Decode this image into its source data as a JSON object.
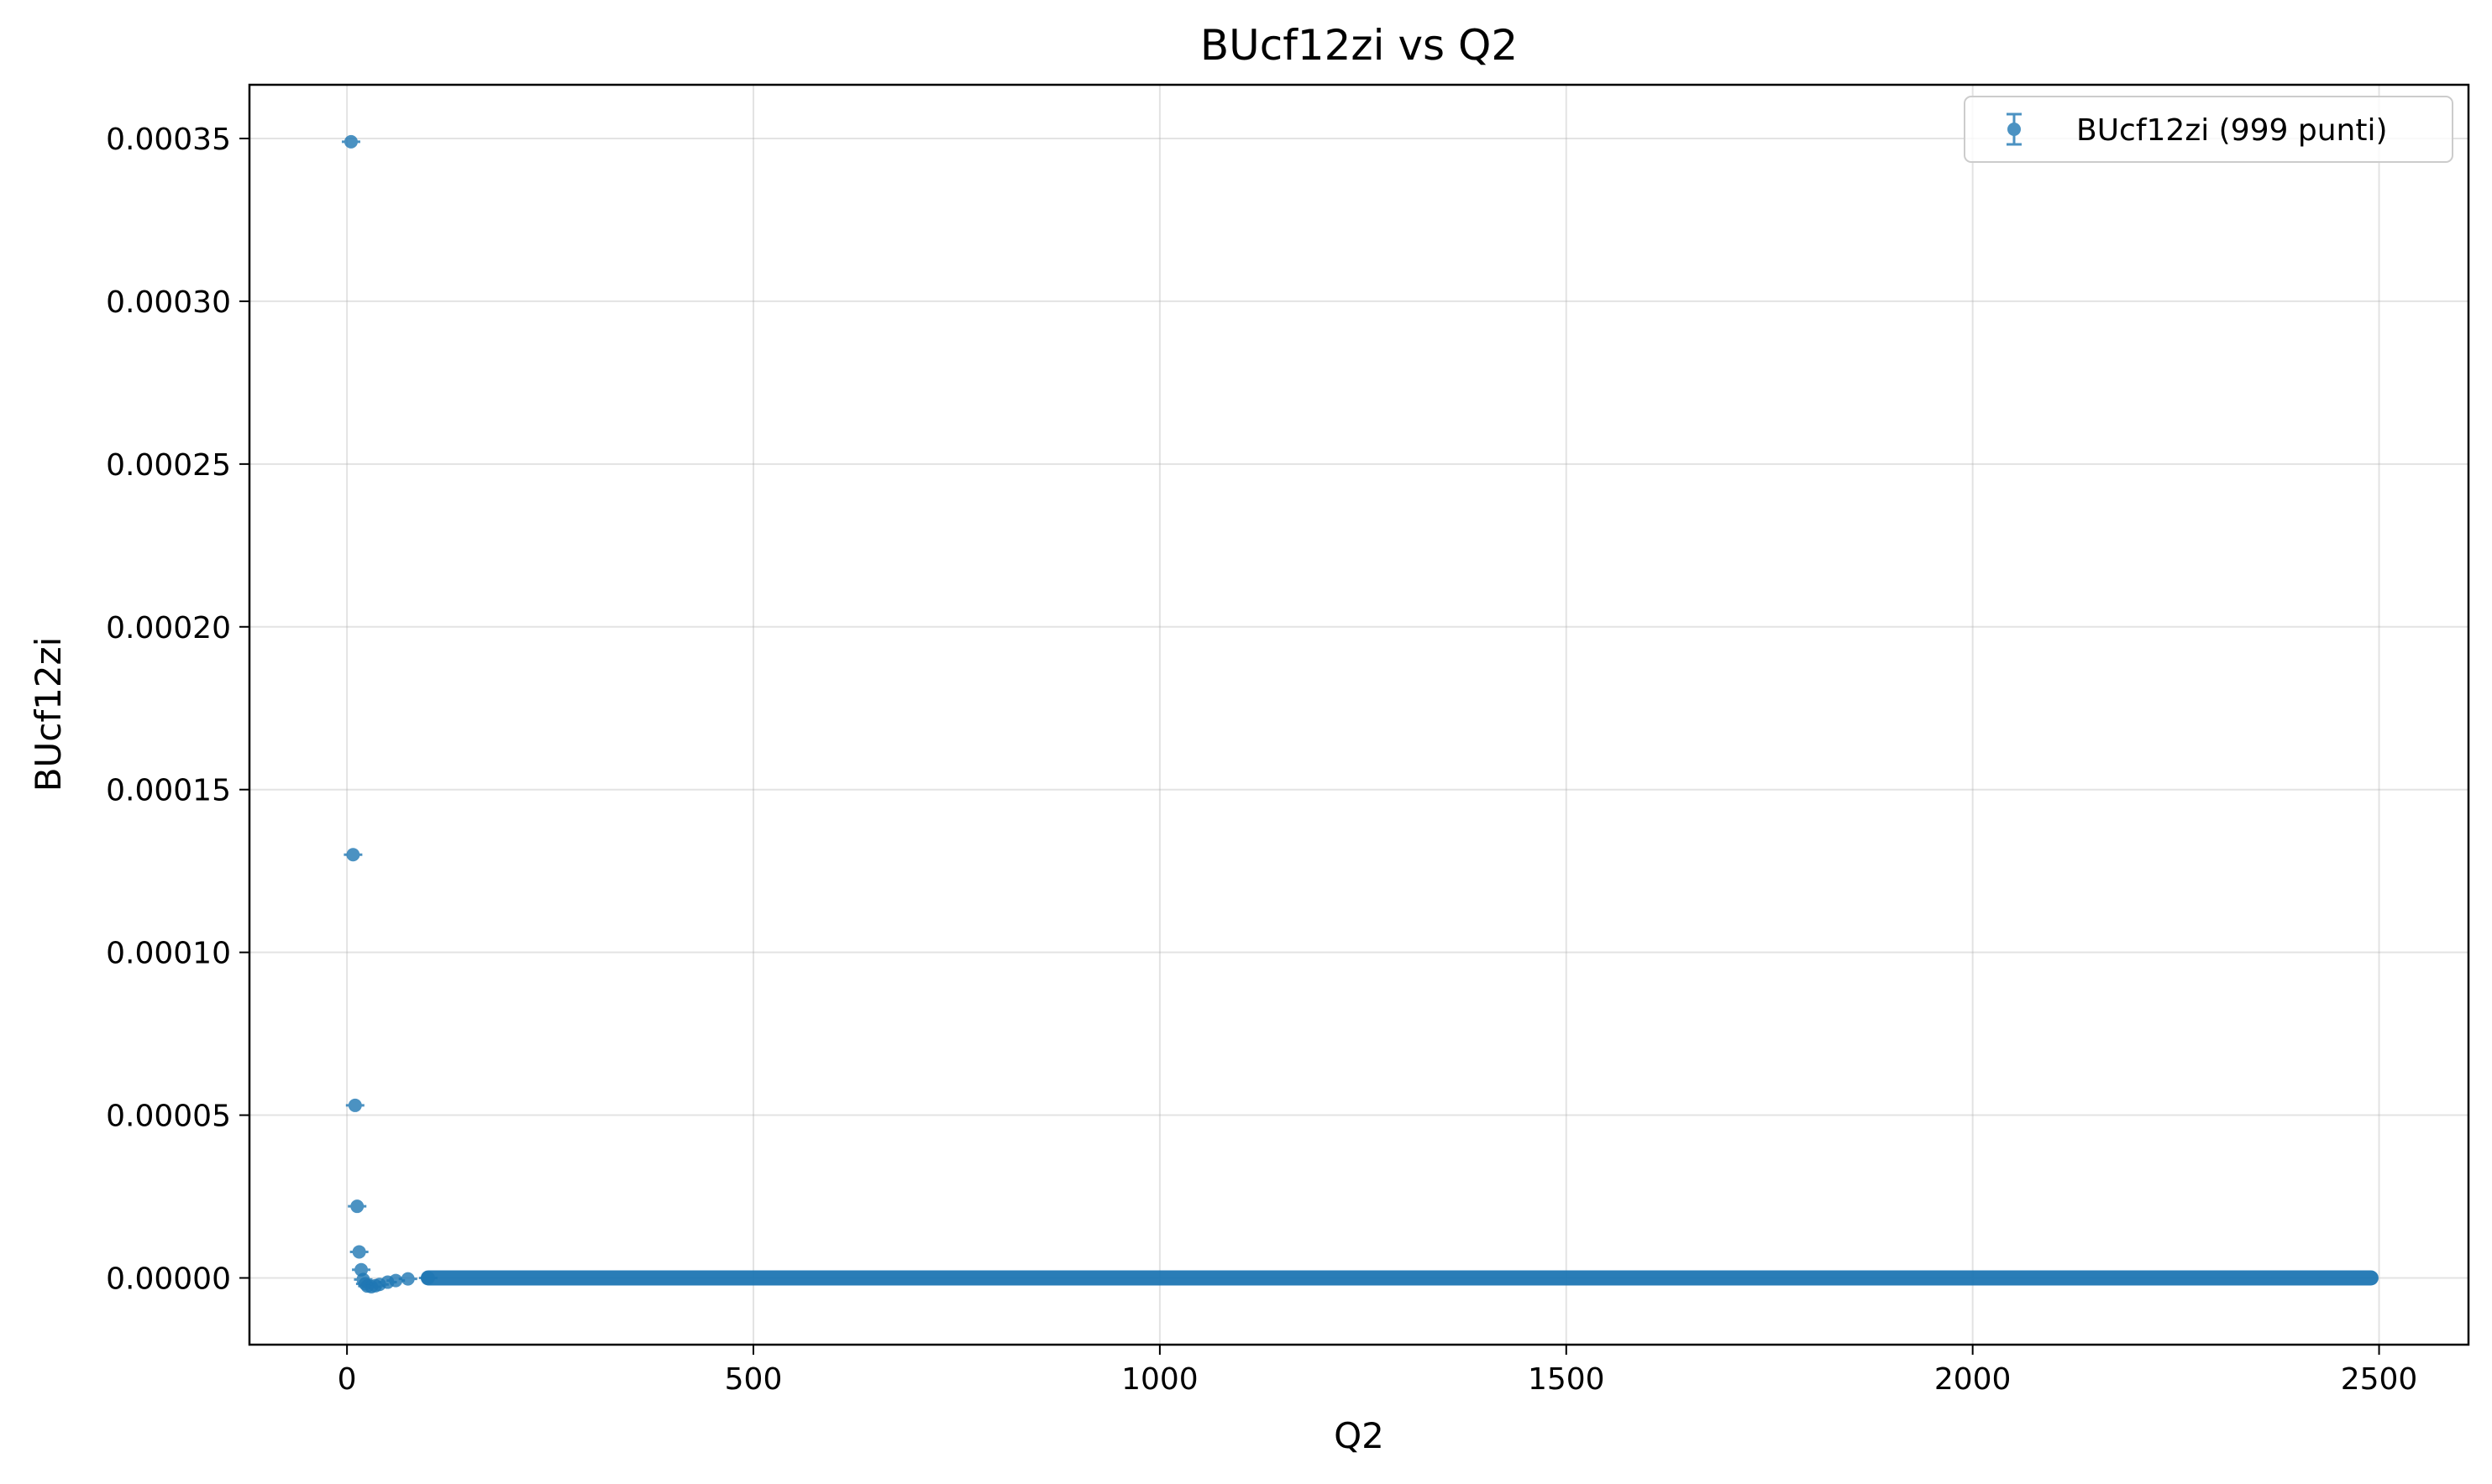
{
  "chart_data": {
    "type": "scatter",
    "title": "BUcf12zi vs Q2",
    "xlabel": "Q2",
    "ylabel": "BUcf12zi",
    "xlim": [
      -120,
      2610
    ],
    "ylim": [
      -2.05e-05,
      0.0003665
    ],
    "x_ticks": [
      0,
      500,
      1000,
      1500,
      2000,
      2500
    ],
    "x_tick_labels": [
      "0",
      "500",
      "1000",
      "1500",
      "2000",
      "2500"
    ],
    "y_ticks": [
      0.0,
      5e-05,
      0.0001,
      0.00015,
      0.0002,
      0.00025,
      0.0003,
      0.00035
    ],
    "y_tick_labels": [
      "0.00000",
      "0.00005",
      "0.00010",
      "0.00015",
      "0.00020",
      "0.00025",
      "0.00030",
      "0.00035"
    ],
    "grid": true,
    "legend": "upper right",
    "series": [
      {
        "name": "BUcf12zi (999 punti)",
        "color": "#1f77b4",
        "marker": "circle with error bars",
        "point_count": 999,
        "highlighted_points": [
          {
            "x": 5,
            "y": 0.000349
          },
          {
            "x": 7.5,
            "y": 0.00013
          },
          {
            "x": 10,
            "y": 5.3e-05
          },
          {
            "x": 12.5,
            "y": 2.2e-05
          },
          {
            "x": 15,
            "y": 8e-06
          },
          {
            "x": 17.5,
            "y": 2.5e-06
          },
          {
            "x": 20,
            "y": -5e-07
          },
          {
            "x": 22.5,
            "y": -1.8e-06
          },
          {
            "x": 25,
            "y": -2.5e-06
          },
          {
            "x": 30,
            "y": -2.7e-06
          },
          {
            "x": 35,
            "y": -2.4e-06
          },
          {
            "x": 40,
            "y": -2e-06
          },
          {
            "x": 50,
            "y": -1.3e-06
          },
          {
            "x": 60,
            "y": -8e-07
          },
          {
            "x": 75,
            "y": -3e-07
          },
          {
            "x": 100,
            "y": 0.0
          }
        ],
        "tail": {
          "x_start": 100,
          "x_end": 2490,
          "y": 0.0
        }
      }
    ]
  }
}
